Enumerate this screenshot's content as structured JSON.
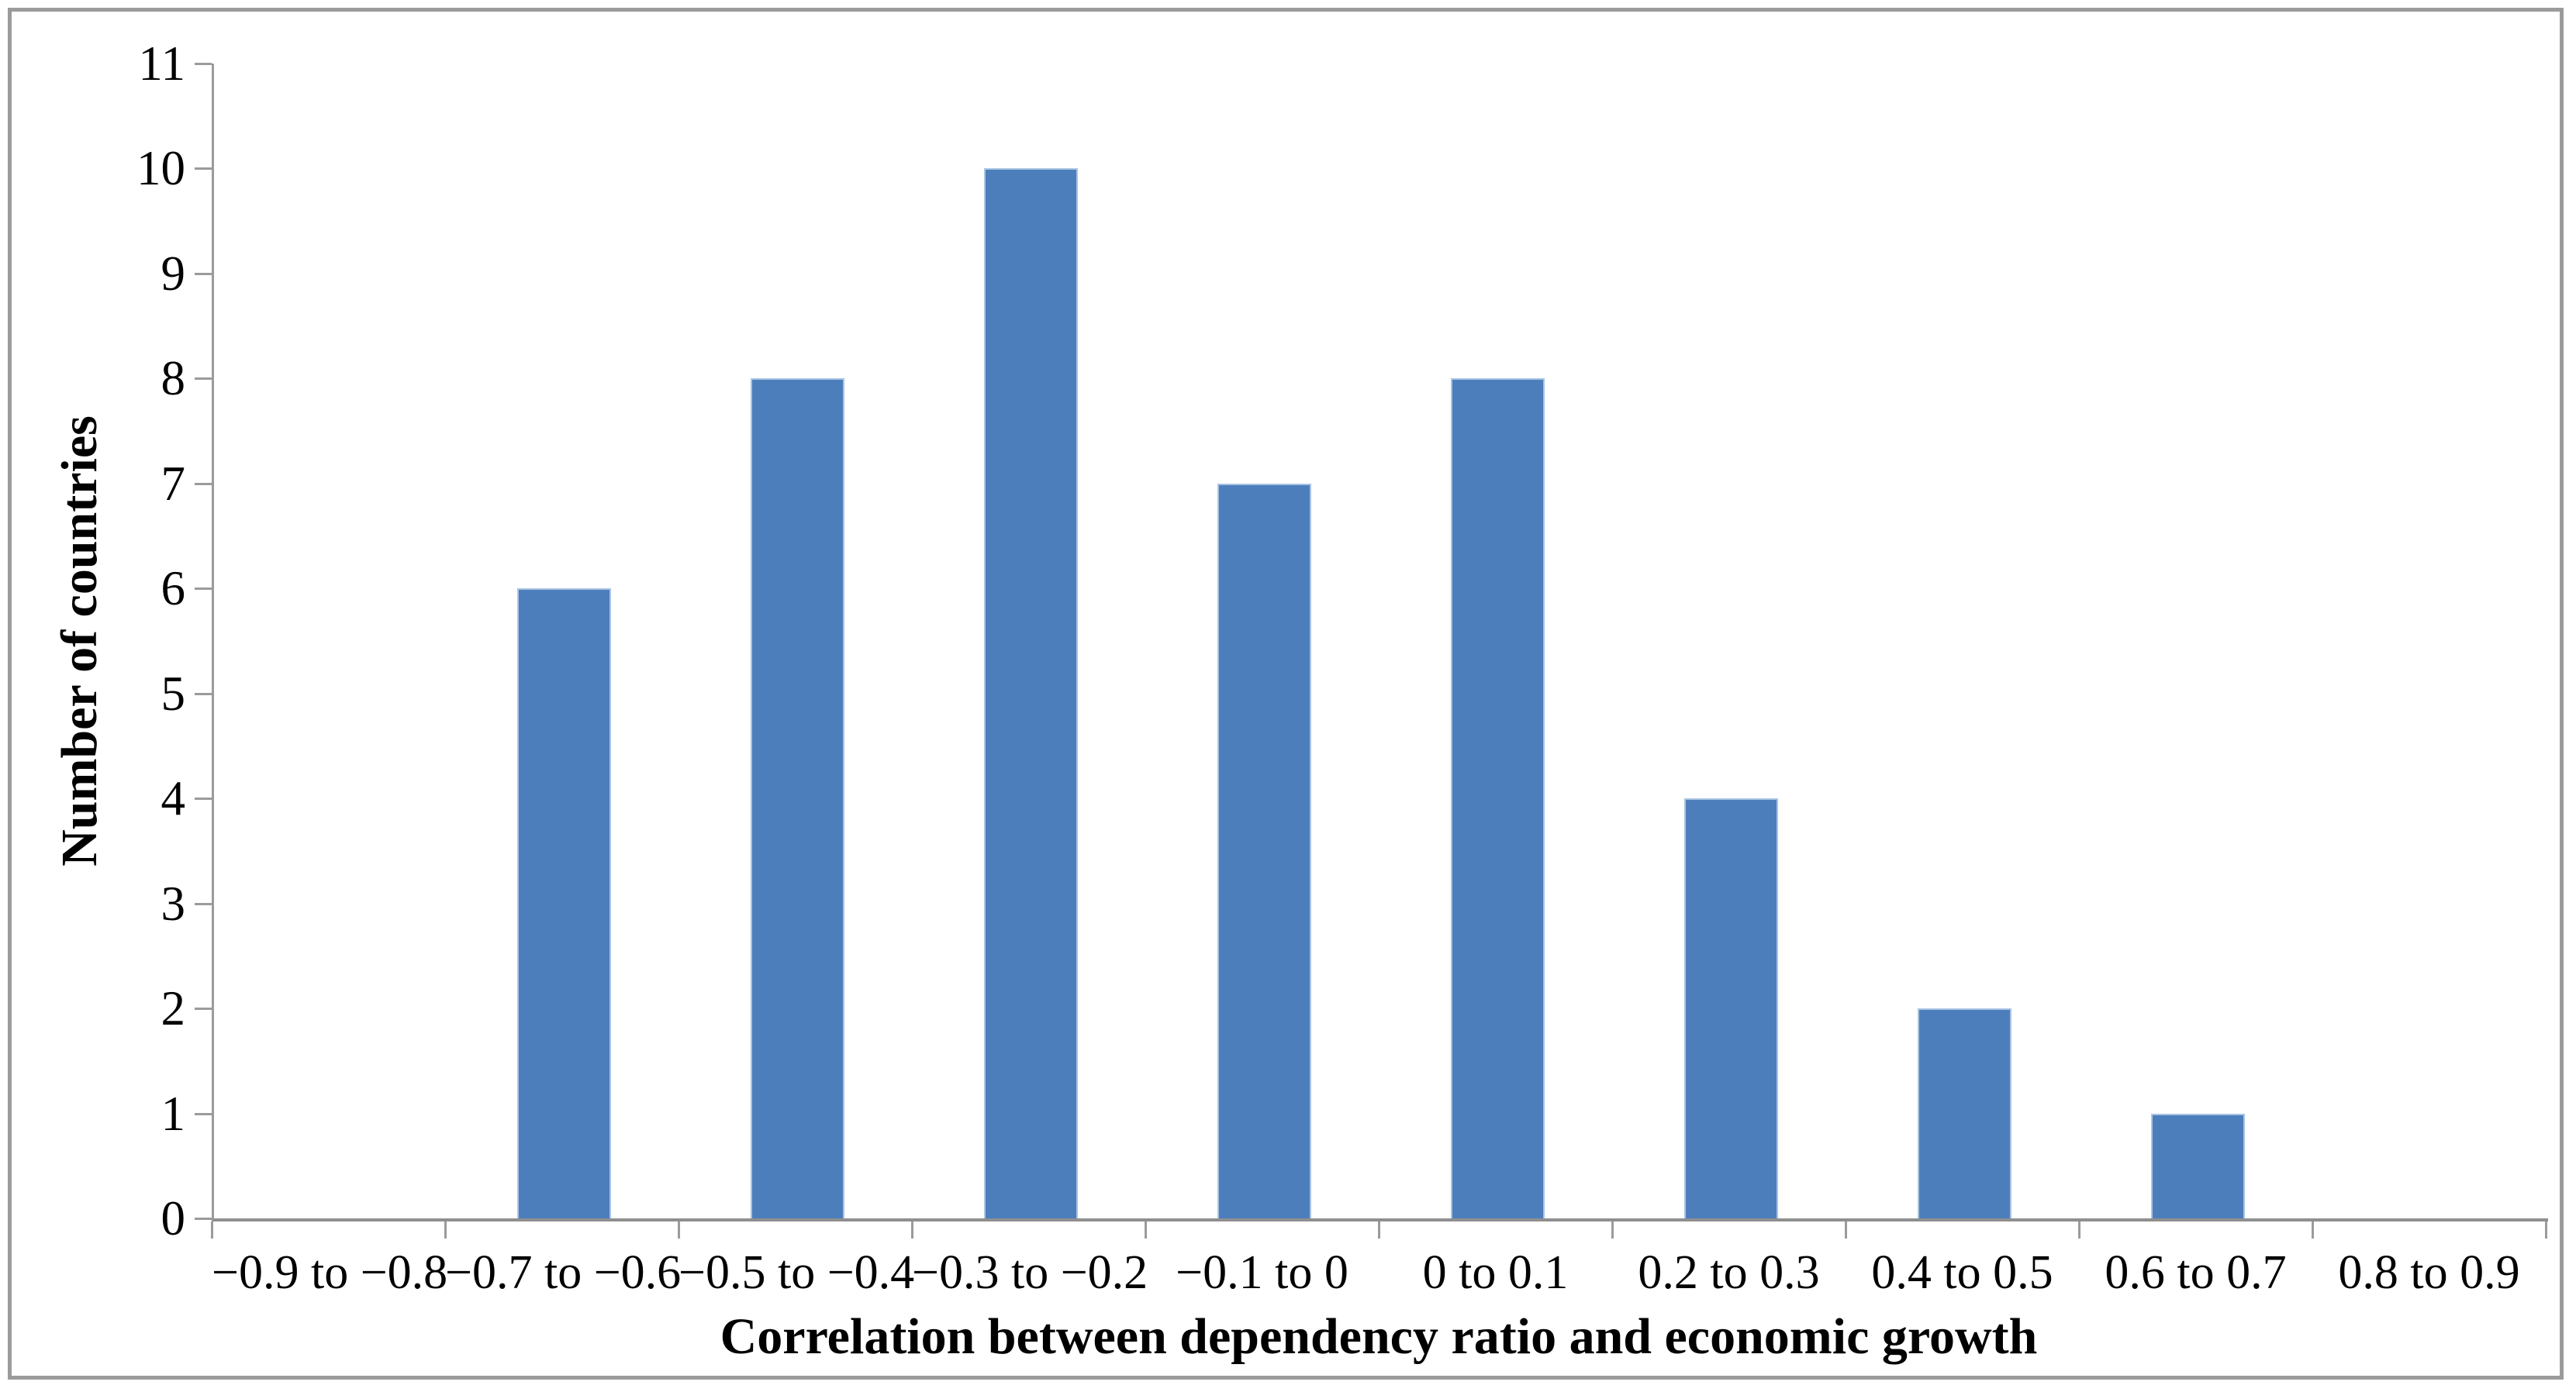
{
  "figure": {
    "frame_color": "#9b9b9b",
    "background_color": "#ffffff",
    "axis_color": "#9b9b9b",
    "text_color": "#000000"
  },
  "chart_data": {
    "type": "bar",
    "title": "",
    "xlabel": "Correlation between dependency ratio and economic growth",
    "ylabel": "Number of countries",
    "categories": [
      "−0.9 to −0.8",
      "−0.7 to −0.6",
      "−0.5 to −0.4",
      "−0.3 to −0.2",
      "−0.1 to 0",
      "0 to 0.1",
      "0.2 to 0.3",
      "0.4 to 0.5",
      "0.6 to 0.7",
      "0.8 to 0.9"
    ],
    "values": [
      0,
      6,
      8,
      10,
      7,
      8,
      4,
      2,
      1,
      0
    ],
    "series": [
      {
        "name": "Number of countries",
        "values": [
          0,
          6,
          8,
          10,
          7,
          8,
          4,
          2,
          1,
          0
        ]
      }
    ],
    "ylim": [
      0,
      11
    ],
    "yticks": [
      0,
      1,
      2,
      3,
      4,
      5,
      6,
      7,
      8,
      9,
      10,
      11
    ],
    "grid": false,
    "legend_position": "none",
    "bar_fill_color": "#4d7ebc",
    "bar_edge_color": "#a9c4e2"
  }
}
